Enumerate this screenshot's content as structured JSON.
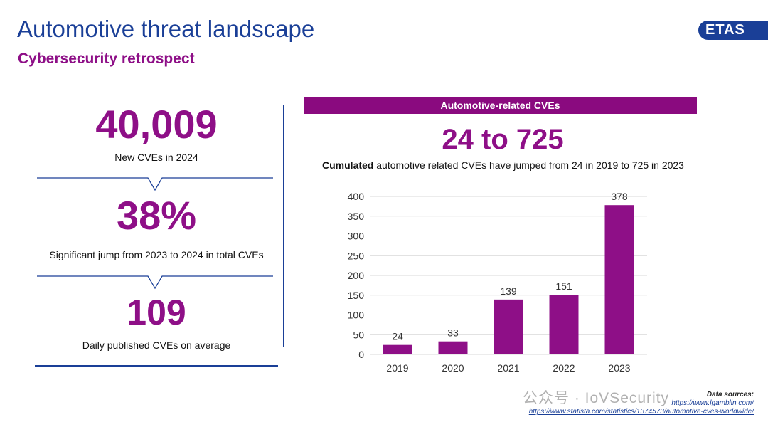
{
  "header": {
    "title": "Automotive threat landscape",
    "subtitle": "Cybersecurity retrospect",
    "logo_text": "ETAS"
  },
  "stats": [
    {
      "value": "40,009",
      "caption": "New CVEs in 2024"
    },
    {
      "value": "38%",
      "caption": "Significant jump from 2023 to 2024 in total CVEs"
    },
    {
      "value": "109",
      "caption": "Daily published CVEs on average"
    }
  ],
  "chart_panel": {
    "banner": "Automotive-related CVEs",
    "headline": "24 to 725",
    "description_bold": "Cumulated",
    "description_rest": " automotive related CVEs have jumped from 24 in 2019 to 725 in 2023"
  },
  "chart_data": {
    "type": "bar",
    "categories": [
      "2019",
      "2020",
      "2021",
      "2022",
      "2023"
    ],
    "values": [
      24,
      33,
      139,
      151,
      378
    ],
    "ylim": [
      0,
      400
    ],
    "yticks": [
      0,
      50,
      100,
      150,
      200,
      250,
      300,
      350,
      400
    ],
    "grid": true,
    "bar_color": "#8e0f87"
  },
  "sources": {
    "label": "Data sources:",
    "links": [
      "https://www.lgamblin.com/",
      "https://www.statista.com/statistics/1374573/automotive-cves-worldwide/"
    ]
  },
  "watermark": "公众号 · IoVSecurity",
  "colors": {
    "accent_blue": "#1a3f97",
    "accent_purple": "#8e0f87"
  }
}
